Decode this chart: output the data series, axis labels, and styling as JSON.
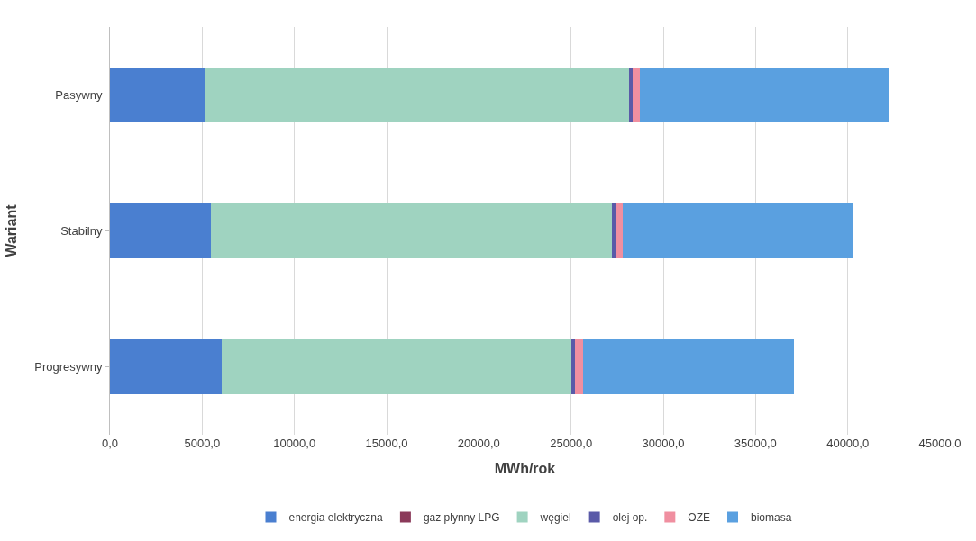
{
  "chart_data": {
    "type": "bar",
    "orientation": "horizontal",
    "stacked": true,
    "xlabel": "MWh/rok",
    "ylabel": "Wariant",
    "categories": [
      "Pasywny",
      "Stabilny",
      "Progresywny"
    ],
    "series": [
      {
        "name": "energia elektryczna",
        "color": "#4a7fd0",
        "values": [
          5170,
          5480,
          6050
        ]
      },
      {
        "name": "gaz płynny LPG",
        "color": "#8b3a5a",
        "values": [
          null,
          null,
          null
        ]
      },
      {
        "name": "węgiel",
        "color": "#9fd3c0",
        "values": [
          22950,
          21720,
          18980
        ]
      },
      {
        "name": "olej op.",
        "color": "#5a5aa8",
        "values": [
          200,
          200,
          200
        ]
      },
      {
        "name": "OZE",
        "color": "#f08fa0",
        "values": [
          400,
          400,
          400
        ]
      },
      {
        "name": "biomasa",
        "color": "#5aa0e0",
        "values": [
          13530,
          12480,
          11450
        ]
      }
    ],
    "xlim": [
      0,
      45000
    ],
    "xticks": [
      {
        "value": 0,
        "label": "0,0"
      },
      {
        "value": 5000,
        "label": "5000,0"
      },
      {
        "value": 10000,
        "label": "10000,0"
      },
      {
        "value": 15000,
        "label": "15000,0"
      },
      {
        "value": 20000,
        "label": "20000,0"
      },
      {
        "value": 25000,
        "label": "25000,0"
      },
      {
        "value": 30000,
        "label": "30000,0"
      },
      {
        "value": 35000,
        "label": "35000,0"
      },
      {
        "value": 40000,
        "label": "40000,0"
      },
      {
        "value": 45000,
        "label": "45000,0"
      }
    ],
    "grid": "x",
    "legend": "bottom"
  }
}
